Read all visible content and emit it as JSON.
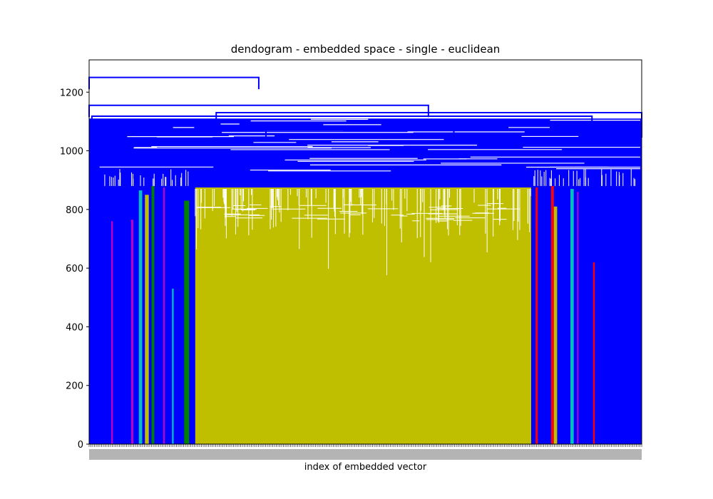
{
  "chart_data": {
    "type": "dendrogram",
    "title": "dendogram - embedded space - single - euclidean",
    "xlabel": "index of embedded vector",
    "ylabel": "",
    "ylim": [
      0,
      1310
    ],
    "y_ticks": [
      0,
      200,
      400,
      600,
      800,
      1000,
      1200
    ],
    "link_color_default": "#0000ff",
    "top_merges": [
      {
        "height": 1250,
        "left_span": [
          0.0,
          0.307
        ],
        "description": "root merge"
      },
      {
        "height": 1155,
        "left_span": [
          0.0,
          0.614
        ]
      },
      {
        "height": 1130,
        "left_span": [
          0.23,
          1.0
        ]
      },
      {
        "height": 1118,
        "left_span": [
          0.005,
          0.91
        ]
      },
      {
        "height": 1095,
        "left_span": [
          0.66,
          1.0
        ]
      },
      {
        "height": 1085,
        "left_span": [
          0.32,
          1.0
        ]
      },
      {
        "height": 1070,
        "left_span": [
          0.005,
          0.98
        ]
      }
    ],
    "clusters": [
      {
        "color": "#bfbf00",
        "x_span": [
          0.192,
          0.8
        ],
        "merge_height": 875,
        "name_hint": "largest cluster"
      },
      {
        "color": "#00bfbf",
        "x_span": [
          0.09,
          0.096
        ],
        "merge_height": 865
      },
      {
        "color": "#bf00bf",
        "x_span": [
          0.04,
          0.043
        ],
        "merge_height": 760
      },
      {
        "color": "#bf00bf",
        "x_span": [
          0.134,
          0.137
        ],
        "merge_height": 875
      },
      {
        "color": "#bf00bf",
        "x_span": [
          0.076,
          0.08
        ],
        "merge_height": 765
      },
      {
        "color": "#008000",
        "x_span": [
          0.113,
          0.118
        ],
        "merge_height": 880
      },
      {
        "color": "#008000",
        "x_span": [
          0.172,
          0.181
        ],
        "merge_height": 830
      },
      {
        "color": "#bfbf00",
        "x_span": [
          0.101,
          0.108
        ],
        "merge_height": 850
      },
      {
        "color": "#00bfbf",
        "x_span": [
          0.15,
          0.153
        ],
        "merge_height": 530
      },
      {
        "color": "#ff0000",
        "x_span": [
          0.808,
          0.812
        ],
        "merge_height": 875
      },
      {
        "color": "#ff0000",
        "x_span": [
          0.836,
          0.841
        ],
        "merge_height": 880
      },
      {
        "color": "#bfbf00",
        "x_span": [
          0.841,
          0.847
        ],
        "merge_height": 810
      },
      {
        "color": "#00bfbf",
        "x_span": [
          0.871,
          0.877
        ],
        "merge_height": 870
      },
      {
        "color": "#ff0000",
        "x_span": [
          0.912,
          0.915
        ],
        "merge_height": 620
      },
      {
        "color": "#bf00bf",
        "x_span": [
          0.883,
          0.885
        ],
        "merge_height": 860
      }
    ]
  }
}
